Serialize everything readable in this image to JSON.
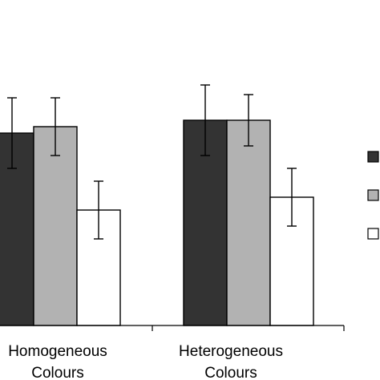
{
  "chart_data": {
    "type": "bar",
    "categories": [
      [
        "Homogeneous",
        "Colours"
      ],
      [
        "Heterogeneous",
        "Colours"
      ]
    ],
    "series": [
      {
        "color": "#333333",
        "values": [
          60,
          64
        ],
        "errors": [
          11,
          11
        ]
      },
      {
        "color": "#b2b2b2",
        "values": [
          62,
          64
        ],
        "errors": [
          9,
          8
        ]
      },
      {
        "color": "#ffffff",
        "values": [
          36,
          40
        ],
        "errors": [
          9,
          9
        ]
      }
    ],
    "ylim": [
      0,
      100
    ],
    "grid": false,
    "legend": "right",
    "title": "",
    "xlabel": "",
    "ylabel": ""
  }
}
